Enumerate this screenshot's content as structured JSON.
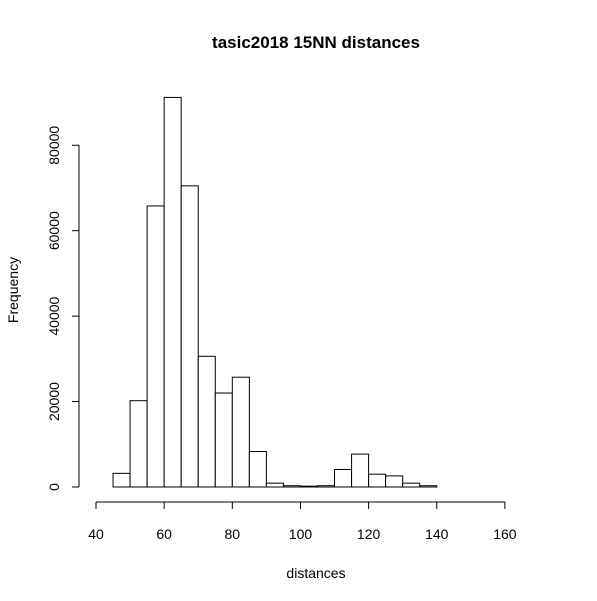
{
  "chart_data": {
    "type": "bar",
    "title": "tasic2018 15NN distances",
    "xlabel": "distances",
    "ylabel": "Frequency",
    "bin_width": 5,
    "bins": [
      {
        "x0": 45,
        "x1": 50,
        "count": 3200
      },
      {
        "x0": 50,
        "x1": 55,
        "count": 20200
      },
      {
        "x0": 55,
        "x1": 60,
        "count": 65800
      },
      {
        "x0": 60,
        "x1": 65,
        "count": 91200
      },
      {
        "x0": 65,
        "x1": 70,
        "count": 70500
      },
      {
        "x0": 70,
        "x1": 75,
        "count": 30600
      },
      {
        "x0": 75,
        "x1": 80,
        "count": 22000
      },
      {
        "x0": 80,
        "x1": 85,
        "count": 25700
      },
      {
        "x0": 85,
        "x1": 90,
        "count": 8300
      },
      {
        "x0": 90,
        "x1": 95,
        "count": 900
      },
      {
        "x0": 95,
        "x1": 100,
        "count": 300
      },
      {
        "x0": 100,
        "x1": 105,
        "count": 200
      },
      {
        "x0": 105,
        "x1": 110,
        "count": 300
      },
      {
        "x0": 110,
        "x1": 115,
        "count": 4100
      },
      {
        "x0": 115,
        "x1": 120,
        "count": 7700
      },
      {
        "x0": 120,
        "x1": 125,
        "count": 3000
      },
      {
        "x0": 125,
        "x1": 130,
        "count": 2600
      },
      {
        "x0": 130,
        "x1": 135,
        "count": 900
      },
      {
        "x0": 135,
        "x1": 140,
        "count": 300
      },
      {
        "x0": 140,
        "x1": 145,
        "count": 0
      },
      {
        "x0": 145,
        "x1": 150,
        "count": 0
      },
      {
        "x0": 150,
        "x1": 155,
        "count": 0
      },
      {
        "x0": 155,
        "x1": 160,
        "count": 0
      },
      {
        "x0": 160,
        "x1": 165,
        "count": 0
      },
      {
        "x0": 165,
        "x1": 170,
        "count": 0
      }
    ],
    "xlim": [
      40,
      170
    ],
    "ylim": [
      0,
      92000
    ],
    "x_axis_range": [
      40,
      160
    ],
    "y_axis_range": [
      0,
      80000
    ],
    "x_ticks": [
      40,
      60,
      80,
      100,
      120,
      140,
      160
    ],
    "y_ticks": [
      0,
      20000,
      40000,
      60000,
      80000
    ],
    "grid": false,
    "legend": "none"
  }
}
